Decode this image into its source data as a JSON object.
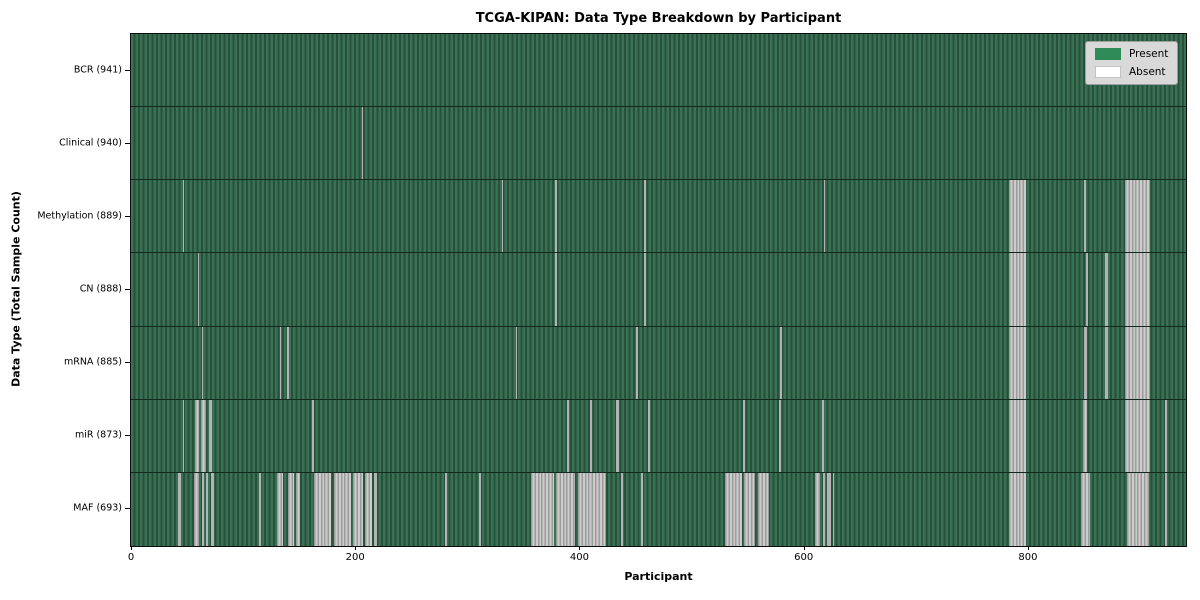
{
  "figure": {
    "title": "TCGA-KIPAN: Data Type Breakdown by Participant",
    "xlabel": "Participant",
    "ylabel": "Data Type (Total Sample Count)"
  },
  "legend": {
    "present_label": "Present",
    "absent_label": "Absent"
  },
  "chart_data": {
    "type": "heatmap",
    "title": "TCGA-KIPAN: Data Type Breakdown by Participant",
    "xlabel": "Participant",
    "ylabel": "Data Type (Total Sample Count)",
    "x_ticks": [
      0,
      200,
      400,
      600,
      800
    ],
    "x_range": [
      0,
      941
    ],
    "n_participants": 941,
    "grid": false,
    "legend_position": "upper right",
    "legend": [
      {
        "label": "Present",
        "color": "#2e8b57"
      },
      {
        "label": "Absent",
        "color": "#ffffff"
      }
    ],
    "colors": {
      "present_stripe_light": "#3a7155",
      "present_stripe_dark": "#26513a",
      "absent_thin": "#b3b3b3",
      "absent_band_light": "#cccccc",
      "absent_band_dark": "#9b9b9b",
      "row_separator": "#16271d"
    },
    "rows": [
      {
        "name": "bcr",
        "label": "BCR (941)",
        "present_count": 941,
        "absent_ranges": []
      },
      {
        "name": "clinical",
        "label": "Clinical (940)",
        "present_count": 940,
        "absent_ranges": [
          [
            206,
            207
          ]
        ]
      },
      {
        "name": "methylation",
        "label": "Methylation (889)",
        "present_count": 889,
        "absent_ranges": [
          [
            46,
            47
          ],
          [
            331,
            332
          ],
          [
            378,
            380
          ],
          [
            458,
            459
          ],
          [
            618,
            619
          ],
          [
            783,
            798
          ],
          [
            850,
            852
          ],
          [
            887,
            909
          ]
        ]
      },
      {
        "name": "cn",
        "label": "CN (888)",
        "present_count": 888,
        "absent_ranges": [
          [
            60,
            61
          ],
          [
            378,
            380
          ],
          [
            458,
            459
          ],
          [
            783,
            798
          ],
          [
            852,
            854
          ],
          [
            869,
            871
          ],
          [
            887,
            909
          ]
        ]
      },
      {
        "name": "mrna",
        "label": "mRNA (885)",
        "present_count": 885,
        "absent_ranges": [
          [
            63,
            64
          ],
          [
            133,
            134
          ],
          [
            139,
            141
          ],
          [
            343,
            344
          ],
          [
            450,
            452
          ],
          [
            579,
            581
          ],
          [
            783,
            798
          ],
          [
            850,
            853
          ],
          [
            869,
            871
          ],
          [
            887,
            909
          ]
        ]
      },
      {
        "name": "mir",
        "label": "miR (873)",
        "present_count": 873,
        "absent_ranges": [
          [
            46,
            47
          ],
          [
            57,
            61
          ],
          [
            62,
            67
          ],
          [
            70,
            72
          ],
          [
            161,
            163
          ],
          [
            389,
            391
          ],
          [
            409,
            411
          ],
          [
            433,
            435
          ],
          [
            461,
            463
          ],
          [
            546,
            548
          ],
          [
            578,
            580
          ],
          [
            616,
            618
          ],
          [
            783,
            798
          ],
          [
            849,
            853
          ],
          [
            887,
            909
          ],
          [
            922,
            924
          ]
        ]
      },
      {
        "name": "maf",
        "label": "MAF (693)",
        "present_count": 693,
        "absent_ranges": [
          [
            42,
            45
          ],
          [
            56,
            61
          ],
          [
            63,
            65
          ],
          [
            67,
            69
          ],
          [
            71,
            74
          ],
          [
            114,
            116
          ],
          [
            130,
            136
          ],
          [
            140,
            145
          ],
          [
            147,
            151
          ],
          [
            163,
            178
          ],
          [
            181,
            196
          ],
          [
            198,
            207
          ],
          [
            209,
            215
          ],
          [
            217,
            219
          ],
          [
            280,
            282
          ],
          [
            310,
            312
          ],
          [
            357,
            377
          ],
          [
            379,
            396
          ],
          [
            399,
            424
          ],
          [
            437,
            439
          ],
          [
            455,
            457
          ],
          [
            530,
            545
          ],
          [
            547,
            557
          ],
          [
            559,
            569
          ],
          [
            610,
            615
          ],
          [
            617,
            619
          ],
          [
            621,
            624
          ],
          [
            626,
            627
          ],
          [
            783,
            798
          ],
          [
            847,
            855
          ],
          [
            888,
            908
          ],
          [
            922,
            924
          ]
        ]
      }
    ]
  }
}
